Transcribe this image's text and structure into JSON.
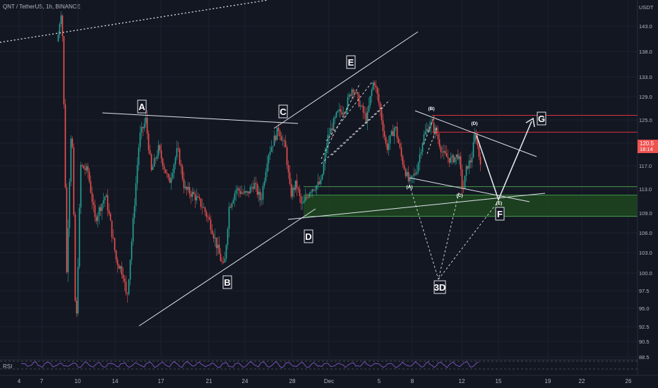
{
  "header": {
    "title": "QNT / TetherUS, 1h, BINANCE"
  },
  "rsi": {
    "label": "RSI"
  },
  "price_axis": {
    "currency": "USDT",
    "ticks": [
      "143.0",
      "138.0",
      "133.0",
      "129.0",
      "125.0",
      "121.0",
      "117.0",
      "113.0",
      "109.0",
      "106.0",
      "103.0",
      "100.0",
      "97.5",
      "95.0",
      "92.5",
      "90.5",
      "88.5"
    ],
    "current_price": "120.5",
    "countdown": "18:14"
  },
  "time_axis": {
    "ticks": [
      "4",
      "7",
      "10",
      "14",
      "17",
      "21",
      "24",
      "28",
      "Dec",
      "5",
      "8",
      "12",
      "15",
      "19",
      "22",
      "26"
    ]
  },
  "annotations": {
    "waves": [
      "A",
      "B",
      "C",
      "D",
      "E",
      "F",
      "G",
      "3D"
    ],
    "sub_waves": [
      "(B)",
      "(D)",
      "(A)",
      "(C)",
      "(E)"
    ]
  },
  "colors": {
    "background": "#131722",
    "up": "#26a69a",
    "down": "#ef5350",
    "zone_fill": "#1e4620",
    "zone_border": "#4caf50",
    "resistance": "#f23645",
    "rsi": "#7e57c2"
  },
  "chart_data": {
    "type": "candlestick",
    "title": "QNT / TetherUS, 1h, BINANCE",
    "y_unit": "USDT",
    "y_scale": "log",
    "ylim": [
      87.5,
      148
    ],
    "x_ticks": [
      "4",
      "7",
      "10",
      "14",
      "17",
      "21",
      "24",
      "28",
      "Dec",
      "5",
      "8",
      "12",
      "15",
      "19",
      "22",
      "26"
    ],
    "current_price": 120.5,
    "swing_points": [
      {
        "label": "A",
        "price": 125.5
      },
      {
        "label": "B",
        "price": 100.2
      },
      {
        "label": "C",
        "price": 123.8
      },
      {
        "label": "D",
        "price": 108.5
      },
      {
        "label": "E",
        "price": 132.5
      },
      {
        "label": "F",
        "price": 111.5
      },
      {
        "label": "G",
        "price": 124.0
      },
      {
        "label": "3D",
        "price": 99.0
      }
    ],
    "sub_wave_points": [
      {
        "label": "(B)",
        "price": 124.5
      },
      {
        "label": "(D)",
        "price": 123.5
      },
      {
        "label": "(A)",
        "price": 114.0
      },
      {
        "label": "(C)",
        "price": 112.5
      },
      {
        "label": "(E)",
        "price": 111.5
      }
    ],
    "support_zone": [
      108.5,
      112.0
    ],
    "support_line": 113.4,
    "resistance_levels": [
      125.8,
      122.9
    ],
    "grid": true
  }
}
